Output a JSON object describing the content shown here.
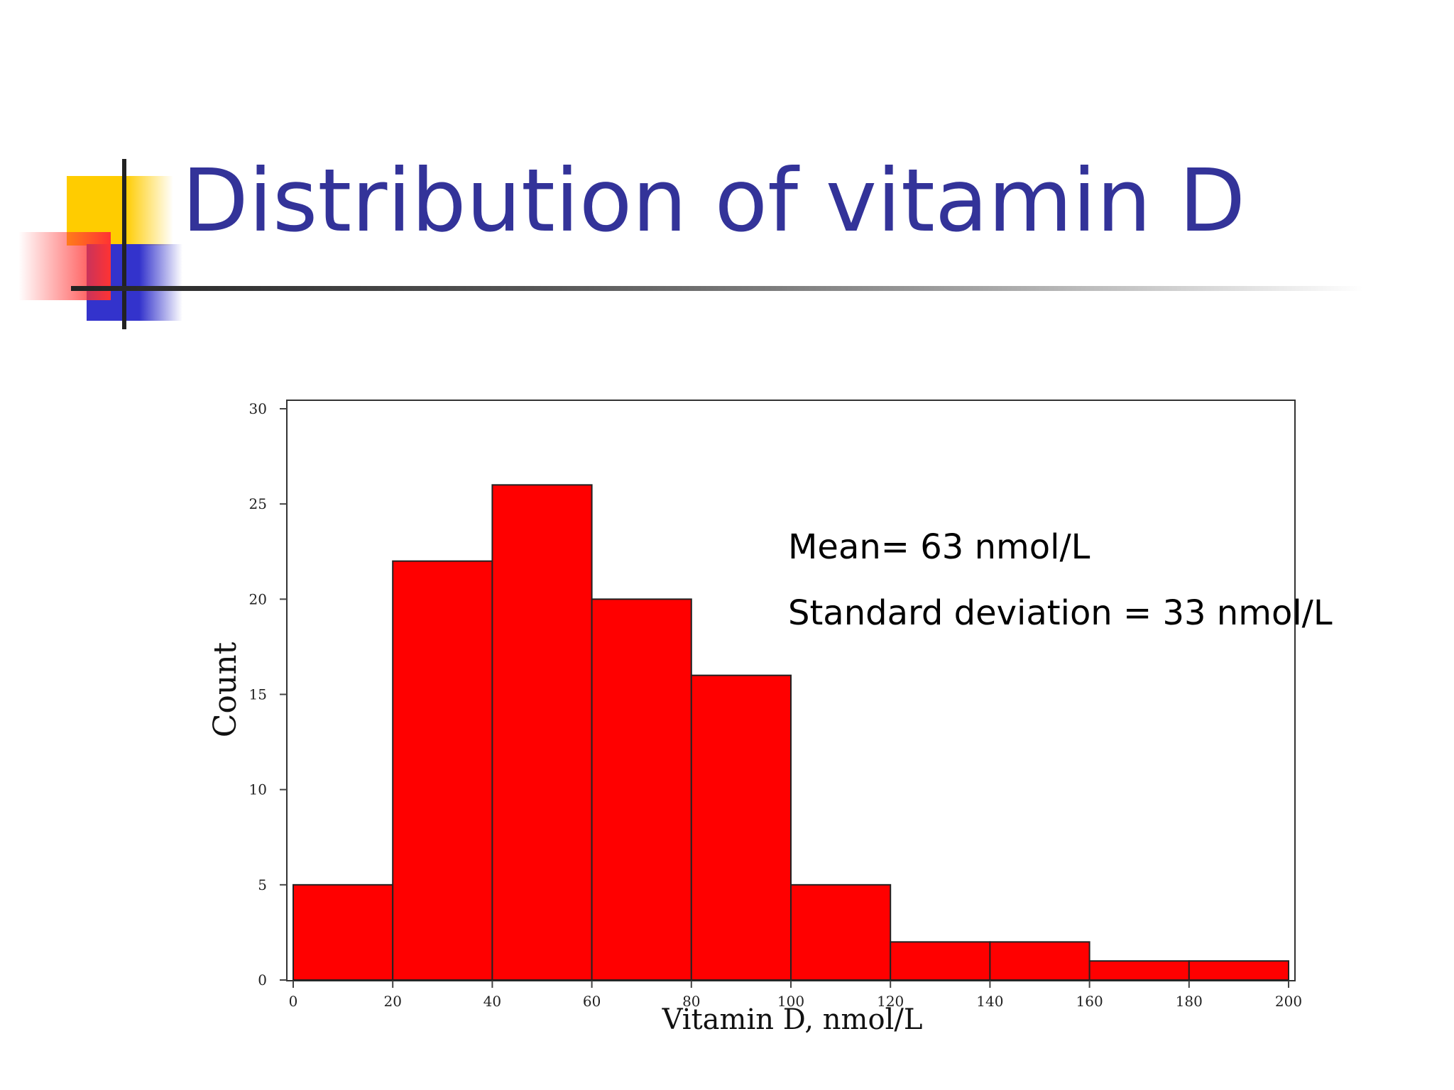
{
  "slide": {
    "title": "Distribution of vitamin D",
    "title_color": "#333399",
    "decoration_colors": {
      "yellow": "#FFCC00",
      "red": "#FF3333",
      "blue": "#3333CC",
      "line": "#222222"
    }
  },
  "chart_data": {
    "type": "bar",
    "subtype": "histogram",
    "bins": [
      {
        "from": 0,
        "to": 20,
        "count": 5
      },
      {
        "from": 20,
        "to": 40,
        "count": 22
      },
      {
        "from": 40,
        "to": 60,
        "count": 26
      },
      {
        "from": 60,
        "to": 80,
        "count": 20
      },
      {
        "from": 80,
        "to": 100,
        "count": 16
      },
      {
        "from": 100,
        "to": 120,
        "count": 5
      },
      {
        "from": 120,
        "to": 140,
        "count": 2
      },
      {
        "from": 140,
        "to": 160,
        "count": 2
      },
      {
        "from": 160,
        "to": 180,
        "count": 1
      },
      {
        "from": 180,
        "to": 200,
        "count": 1
      }
    ],
    "xlabel": "Vitamin D, nmol/L",
    "ylabel": "Count",
    "xlim": [
      0,
      200
    ],
    "ylim": [
      0,
      30
    ],
    "xticks": [
      0,
      20,
      40,
      60,
      80,
      100,
      120,
      140,
      160,
      180,
      200
    ],
    "yticks": [
      0,
      5,
      10,
      15,
      20,
      25,
      30
    ],
    "bar_color": "#FF0000",
    "grid": false,
    "annotations": [
      {
        "text": "Mean= 63 nmol/L"
      },
      {
        "text": "Standard deviation = 33 nmol/L"
      }
    ]
  }
}
